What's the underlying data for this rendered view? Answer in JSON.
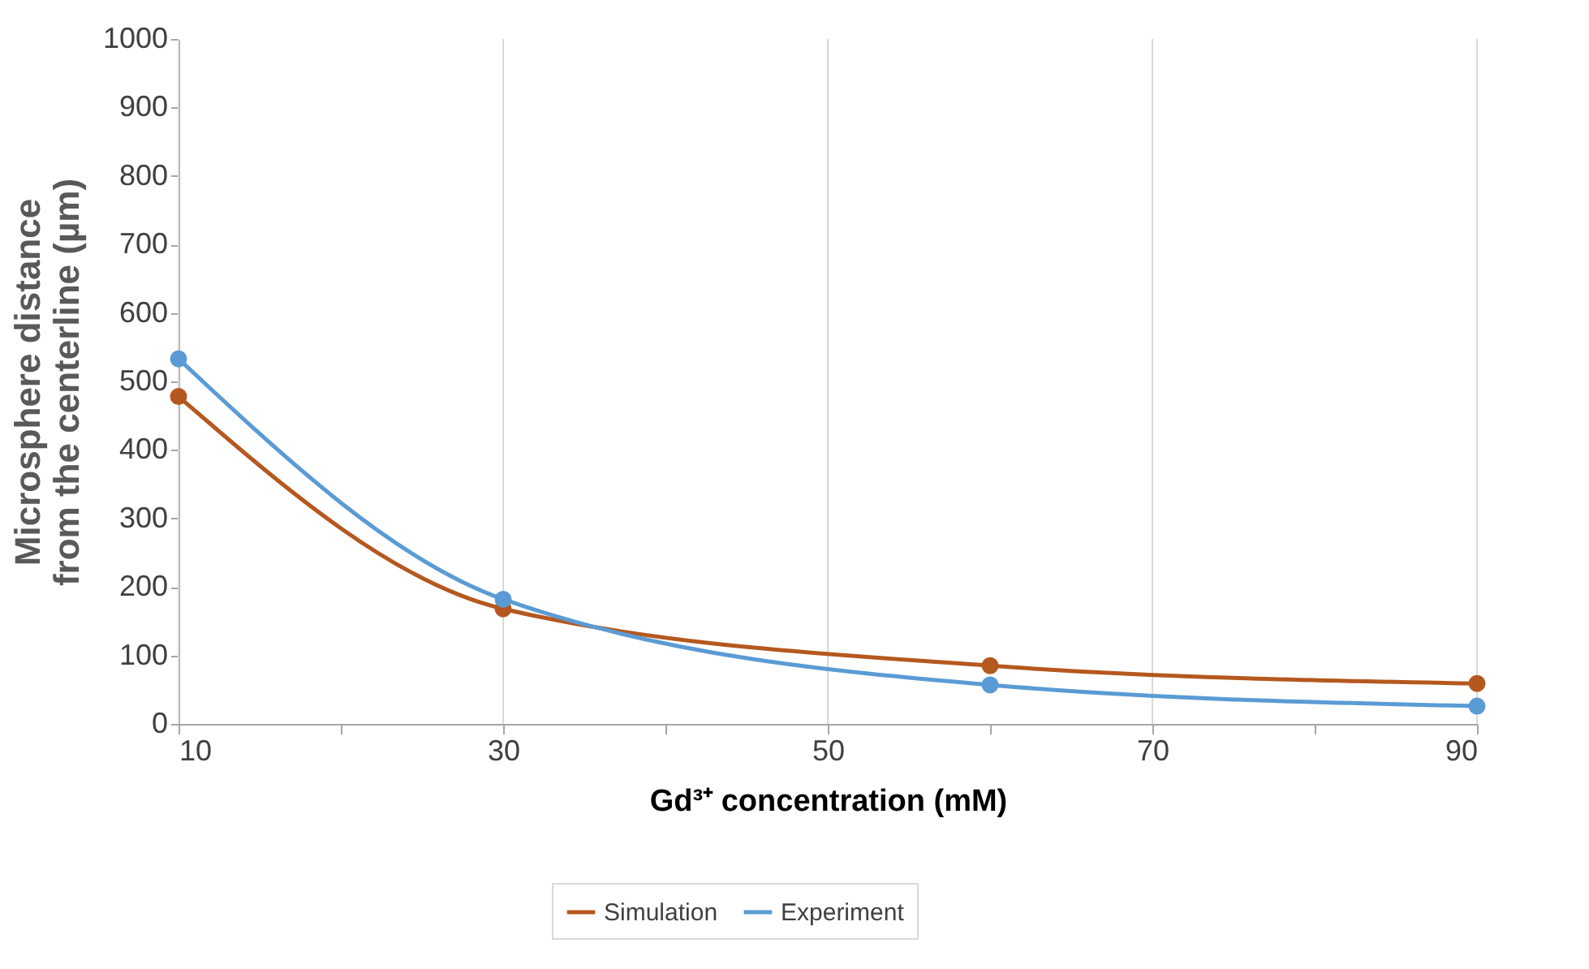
{
  "chart_data": {
    "type": "line",
    "xlabel": "Gd³⁺ concentration (mM)",
    "ylabel": "Microsphere distance from the centerline (µm)",
    "x": [
      10,
      30,
      60,
      90
    ],
    "series": [
      {
        "name": "Simulation",
        "color": "#b5581f",
        "values": [
          478,
          168,
          85,
          59
        ]
      },
      {
        "name": "Experiment",
        "color": "#5b9bd5",
        "values": [
          533,
          182,
          57,
          26
        ]
      }
    ],
    "xlim": [
      10,
      90
    ],
    "xticks": [
      10,
      {
        "value": 20,
        "label": null
      },
      30,
      {
        "value": 40,
        "label": null
      },
      50,
      {
        "value": 60,
        "label": null
      },
      70,
      {
        "value": 80,
        "label": null
      },
      90
    ],
    "ylim": [
      0,
      1000
    ],
    "yticks": [
      0,
      100,
      200,
      300,
      400,
      500,
      600,
      700,
      800,
      900,
      1000
    ],
    "grid": "x",
    "legend": "bottom",
    "marker": "circle",
    "line_style": "solid"
  }
}
